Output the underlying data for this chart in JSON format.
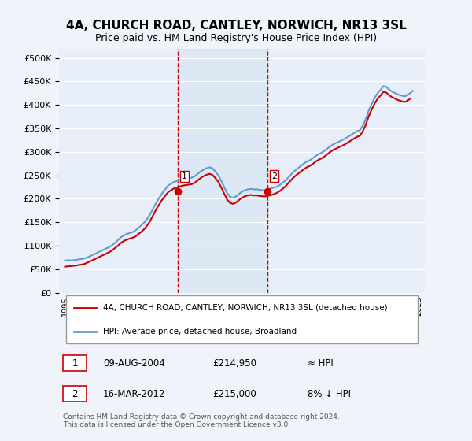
{
  "title": "4A, CHURCH ROAD, CANTLEY, NORWICH, NR13 3SL",
  "subtitle": "Price paid vs. HM Land Registry's House Price Index (HPI)",
  "ylabel_ticks": [
    "£0",
    "£50K",
    "£100K",
    "£150K",
    "£200K",
    "£250K",
    "£300K",
    "£350K",
    "£400K",
    "£450K",
    "£500K"
  ],
  "ytick_vals": [
    0,
    50000,
    100000,
    150000,
    200000,
    250000,
    300000,
    350000,
    400000,
    450000,
    500000
  ],
  "ylim": [
    0,
    520000
  ],
  "xlim_start": 1994.5,
  "xlim_end": 2025.5,
  "xtick_years": [
    1995,
    1996,
    1997,
    1998,
    1999,
    2000,
    2001,
    2002,
    2003,
    2004,
    2005,
    2006,
    2007,
    2008,
    2009,
    2010,
    2011,
    2012,
    2013,
    2014,
    2015,
    2016,
    2017,
    2018,
    2019,
    2020,
    2021,
    2022,
    2023,
    2024,
    2025
  ],
  "bg_color": "#f0f4fa",
  "plot_bg": "#e8eef8",
  "grid_color": "#ffffff",
  "line1_color": "#cc0000",
  "line2_color": "#6699cc",
  "marker1_color": "#cc0000",
  "sale1_year": 2004.6,
  "sale1_price": 214950,
  "sale2_year": 2012.2,
  "sale2_price": 215000,
  "vline_color": "#cc0000",
  "shade_color": "#dde8f5",
  "legend_line1": "4A, CHURCH ROAD, CANTLEY, NORWICH, NR13 3SL (detached house)",
  "legend_line2": "HPI: Average price, detached house, Broadland",
  "table_row1_num": "1",
  "table_row1_date": "09-AUG-2004",
  "table_row1_price": "£214,950",
  "table_row1_hpi": "≈ HPI",
  "table_row2_num": "2",
  "table_row2_date": "16-MAR-2012",
  "table_row2_price": "£215,000",
  "table_row2_hpi": "8% ↓ HPI",
  "footer": "Contains HM Land Registry data © Crown copyright and database right 2024.\nThis data is licensed under the Open Government Licence v3.0.",
  "hpi_data_x": [
    1995.0,
    1995.25,
    1995.5,
    1995.75,
    1996.0,
    1996.25,
    1996.5,
    1996.75,
    1997.0,
    1997.25,
    1997.5,
    1997.75,
    1998.0,
    1998.25,
    1998.5,
    1998.75,
    1999.0,
    1999.25,
    1999.5,
    1999.75,
    2000.0,
    2000.25,
    2000.5,
    2000.75,
    2001.0,
    2001.25,
    2001.5,
    2001.75,
    2002.0,
    2002.25,
    2002.5,
    2002.75,
    2003.0,
    2003.25,
    2003.5,
    2003.75,
    2004.0,
    2004.25,
    2004.5,
    2004.75,
    2005.0,
    2005.25,
    2005.5,
    2005.75,
    2006.0,
    2006.25,
    2006.5,
    2006.75,
    2007.0,
    2007.25,
    2007.5,
    2007.75,
    2008.0,
    2008.25,
    2008.5,
    2008.75,
    2009.0,
    2009.25,
    2009.5,
    2009.75,
    2010.0,
    2010.25,
    2010.5,
    2010.75,
    2011.0,
    2011.25,
    2011.5,
    2011.75,
    2012.0,
    2012.25,
    2012.5,
    2012.75,
    2013.0,
    2013.25,
    2013.5,
    2013.75,
    2014.0,
    2014.25,
    2014.5,
    2014.75,
    2015.0,
    2015.25,
    2015.5,
    2015.75,
    2016.0,
    2016.25,
    2016.5,
    2016.75,
    2017.0,
    2017.25,
    2017.5,
    2017.75,
    2018.0,
    2018.25,
    2018.5,
    2018.75,
    2019.0,
    2019.25,
    2019.5,
    2019.75,
    2020.0,
    2020.25,
    2020.5,
    2020.75,
    2021.0,
    2021.25,
    2021.5,
    2021.75,
    2022.0,
    2022.25,
    2022.5,
    2022.75,
    2023.0,
    2023.25,
    2023.5,
    2023.75,
    2024.0,
    2024.25,
    2024.5
  ],
  "hpi_data_y": [
    68000,
    69000,
    68500,
    69000,
    70000,
    71000,
    72000,
    73500,
    76000,
    79000,
    82000,
    85000,
    88000,
    91000,
    94000,
    97000,
    101000,
    106000,
    112000,
    118000,
    122000,
    125000,
    127000,
    129000,
    133000,
    138000,
    144000,
    150000,
    158000,
    168000,
    180000,
    192000,
    202000,
    212000,
    220000,
    228000,
    232000,
    236000,
    238000,
    240000,
    242000,
    243000,
    244000,
    245000,
    248000,
    253000,
    258000,
    262000,
    265000,
    267000,
    265000,
    258000,
    250000,
    238000,
    225000,
    212000,
    204000,
    202000,
    205000,
    210000,
    215000,
    218000,
    220000,
    221000,
    220000,
    220000,
    219000,
    218000,
    218000,
    220000,
    222000,
    224000,
    226000,
    230000,
    235000,
    240000,
    247000,
    254000,
    260000,
    265000,
    270000,
    275000,
    279000,
    282000,
    286000,
    291000,
    295000,
    298000,
    302000,
    307000,
    312000,
    316000,
    319000,
    322000,
    325000,
    328000,
    332000,
    336000,
    340000,
    344000,
    346000,
    356000,
    370000,
    388000,
    402000,
    415000,
    425000,
    432000,
    440000,
    438000,
    432000,
    428000,
    425000,
    422000,
    420000,
    418000,
    420000,
    425000,
    430000
  ],
  "price_data_x": [
    1995.0,
    1995.25,
    1995.5,
    1995.75,
    1996.0,
    1996.25,
    1996.5,
    1996.75,
    1997.0,
    1997.25,
    1997.5,
    1997.75,
    1998.0,
    1998.25,
    1998.5,
    1998.75,
    1999.0,
    1999.25,
    1999.5,
    1999.75,
    2000.0,
    2000.25,
    2000.5,
    2000.75,
    2001.0,
    2001.25,
    2001.5,
    2001.75,
    2002.0,
    2002.25,
    2002.5,
    2002.75,
    2003.0,
    2003.25,
    2003.5,
    2003.75,
    2004.0,
    2004.25,
    2004.75,
    2005.0,
    2005.25,
    2005.5,
    2005.75,
    2006.0,
    2006.25,
    2006.5,
    2006.75,
    2007.0,
    2007.25,
    2007.5,
    2007.75,
    2008.0,
    2008.25,
    2008.5,
    2008.75,
    2009.0,
    2009.25,
    2009.5,
    2009.75,
    2010.0,
    2010.25,
    2010.5,
    2010.75,
    2011.0,
    2011.25,
    2011.5,
    2011.75,
    2012.0,
    2012.5,
    2012.75,
    2013.0,
    2013.25,
    2013.5,
    2013.75,
    2014.0,
    2014.25,
    2014.5,
    2014.75,
    2015.0,
    2015.25,
    2015.5,
    2015.75,
    2016.0,
    2016.25,
    2016.5,
    2016.75,
    2017.0,
    2017.25,
    2017.5,
    2017.75,
    2018.0,
    2018.25,
    2018.5,
    2018.75,
    2019.0,
    2019.25,
    2019.5,
    2019.75,
    2020.0,
    2020.25,
    2020.5,
    2020.75,
    2021.0,
    2021.25,
    2021.5,
    2021.75,
    2022.0,
    2022.25,
    2022.5,
    2022.75,
    2023.0,
    2023.25,
    2023.5,
    2023.75,
    2024.0,
    2024.25
  ],
  "price_data_y": [
    55000,
    56000,
    56500,
    57000,
    58000,
    59000,
    60000,
    62000,
    65000,
    68000,
    71000,
    74000,
    77000,
    80000,
    83000,
    86000,
    90000,
    95000,
    100000,
    106000,
    110000,
    113000,
    115000,
    117000,
    120000,
    125000,
    130000,
    136000,
    144000,
    154000,
    166000,
    178000,
    188000,
    198000,
    206000,
    214000,
    218000,
    222000,
    226000,
    228000,
    229000,
    230000,
    231000,
    234000,
    239000,
    244000,
    248000,
    251000,
    253000,
    251000,
    244000,
    236000,
    224000,
    211000,
    198000,
    191000,
    189000,
    192000,
    197000,
    202000,
    205000,
    207000,
    208000,
    207000,
    207000,
    206000,
    205000,
    205000,
    208000,
    210000,
    213000,
    217000,
    222000,
    228000,
    235000,
    242000,
    248000,
    253000,
    258000,
    263000,
    267000,
    270000,
    274000,
    279000,
    283000,
    286000,
    290000,
    295000,
    300000,
    304000,
    307000,
    310000,
    313000,
    316000,
    320000,
    324000,
    328000,
    332000,
    334000,
    344000,
    358000,
    376000,
    390000,
    403000,
    413000,
    420000,
    428000,
    426000,
    420000,
    416000,
    413000,
    410000,
    408000,
    406000,
    408000,
    413000
  ]
}
